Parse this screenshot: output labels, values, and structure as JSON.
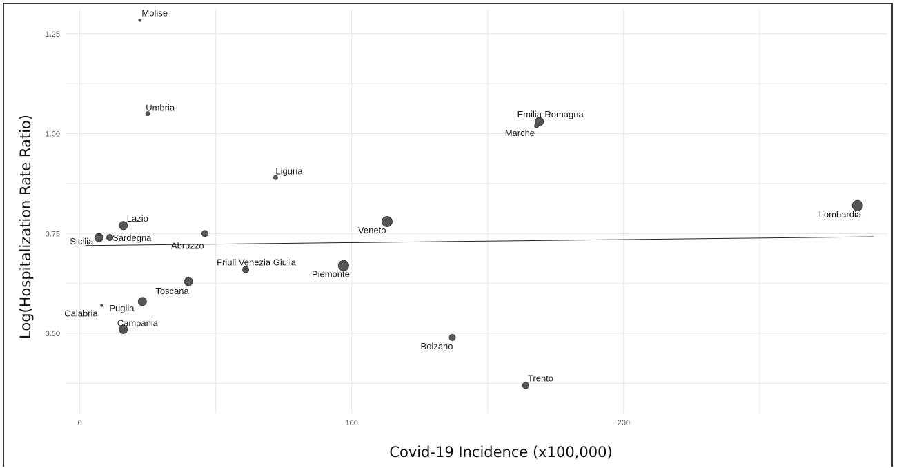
{
  "chart_data": {
    "type": "scatter",
    "title": "",
    "xlabel": "Covid-19 Incidence (x100,000)",
    "ylabel": "Log(Hospitalization Rate Ratio)",
    "xlim": [
      -5,
      297
    ],
    "ylim": [
      0.3,
      1.31
    ],
    "x_ticks": [
      0,
      100,
      200
    ],
    "x_tick_labels": [
      "0",
      "100",
      "200"
    ],
    "y_ticks": [
      0.5,
      0.75,
      1.0,
      1.25
    ],
    "y_tick_labels": [
      "0.50",
      "0.75",
      "1.00",
      "1.25"
    ],
    "grid": true,
    "marker_color": "#555555",
    "regression_line": {
      "x": [
        2,
        292
      ],
      "y": [
        0.72,
        0.742
      ]
    },
    "points": [
      {
        "label": "Molise",
        "x": 22,
        "y": 1.283,
        "size": 1
      },
      {
        "label": "Umbria",
        "x": 25,
        "y": 1.05,
        "size": 2
      },
      {
        "label": "Emilia-Romagna",
        "x": 169,
        "y": 1.03,
        "size": 4
      },
      {
        "label": "Marche",
        "x": 168,
        "y": 1.02,
        "size": 2
      },
      {
        "label": "Liguria",
        "x": 72,
        "y": 0.89,
        "size": 2
      },
      {
        "label": "Lombardia",
        "x": 286,
        "y": 0.82,
        "size": 5
      },
      {
        "label": "Veneto",
        "x": 113,
        "y": 0.78,
        "size": 5
      },
      {
        "label": "Lazio",
        "x": 16,
        "y": 0.77,
        "size": 4
      },
      {
        "label": "Abruzzo",
        "x": 46,
        "y": 0.75,
        "size": 3
      },
      {
        "label": "Sicilia",
        "x": 7,
        "y": 0.74,
        "size": 4
      },
      {
        "label": "Sardegna",
        "x": 11,
        "y": 0.74,
        "size": 3
      },
      {
        "label": "Piemonte",
        "x": 97,
        "y": 0.67,
        "size": 5
      },
      {
        "label": "Friuli Venezia Giulia",
        "x": 61,
        "y": 0.66,
        "size": 3
      },
      {
        "label": "Toscana",
        "x": 40,
        "y": 0.63,
        "size": 4
      },
      {
        "label": "Puglia",
        "x": 23,
        "y": 0.58,
        "size": 4
      },
      {
        "label": "Calabria",
        "x": 8,
        "y": 0.57,
        "size": 1
      },
      {
        "label": "Campania",
        "x": 16,
        "y": 0.51,
        "size": 4
      },
      {
        "label": "Bolzano",
        "x": 137,
        "y": 0.49,
        "size": 3
      },
      {
        "label": "Trento",
        "x": 164,
        "y": 0.37,
        "size": 3
      }
    ]
  }
}
